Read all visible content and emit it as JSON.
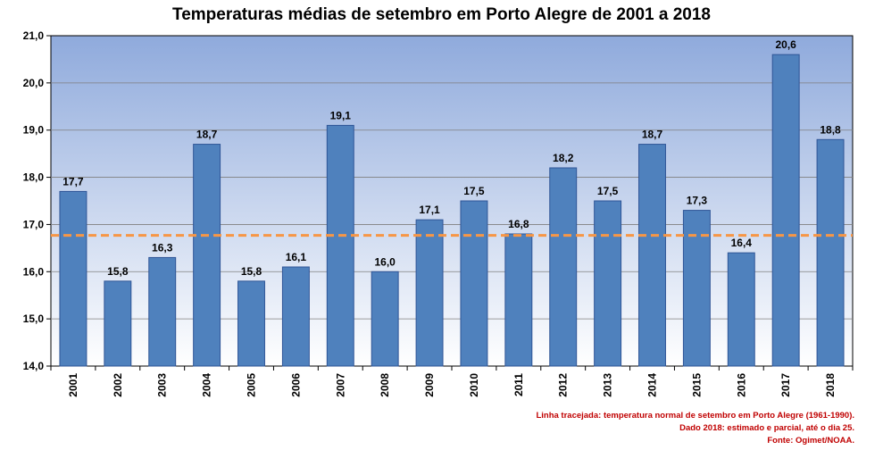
{
  "chart_data": {
    "type": "bar",
    "title": "Temperaturas médias de setembro em Porto Alegre de 2001 a 2018",
    "xlabel": "",
    "ylabel": "",
    "categories": [
      "2001",
      "2002",
      "2003",
      "2004",
      "2005",
      "2006",
      "2007",
      "2008",
      "2009",
      "2010",
      "2011",
      "2012",
      "2013",
      "2014",
      "2015",
      "2016",
      "2017",
      "2018"
    ],
    "values": [
      17.7,
      15.8,
      16.3,
      18.7,
      15.8,
      16.1,
      19.1,
      16.0,
      17.1,
      17.5,
      16.8,
      18.2,
      17.5,
      18.7,
      17.3,
      16.4,
      20.6,
      18.8
    ],
    "data_labels": [
      "17,7",
      "15,8",
      "16,3",
      "18,7",
      "15,8",
      "16,1",
      "19,1",
      "16,0",
      "17,1",
      "17,5",
      "16,8",
      "18,2",
      "17,5",
      "18,7",
      "17,3",
      "16,4",
      "20,6",
      "18,8"
    ],
    "ylim": [
      14.0,
      21.0
    ],
    "y_ticks": [
      14.0,
      15.0,
      16.0,
      17.0,
      18.0,
      19.0,
      20.0,
      21.0
    ],
    "y_tick_labels": [
      "14,0",
      "15,0",
      "16,0",
      "17,0",
      "18,0",
      "19,0",
      "20,0",
      "21,0"
    ],
    "reference_line": 16.77,
    "grid": true,
    "legend": "none",
    "colors": {
      "bar": "#4f81bd",
      "bar_border": "#2f5597",
      "reference_line": "#f79646",
      "plot_bg_top": "#8faadc",
      "plot_bg_bottom": "#ffffff",
      "gridline": "#7f7f7f",
      "note_text": "#c00000"
    }
  },
  "notes": [
    "Linha tracejada: temperatura normal de setembro em Porto Alegre (1961-1990).",
    "Dado 2018: estimado e parcial, até o dia 25.",
    "Fonte: Ogimet/NOAA."
  ]
}
